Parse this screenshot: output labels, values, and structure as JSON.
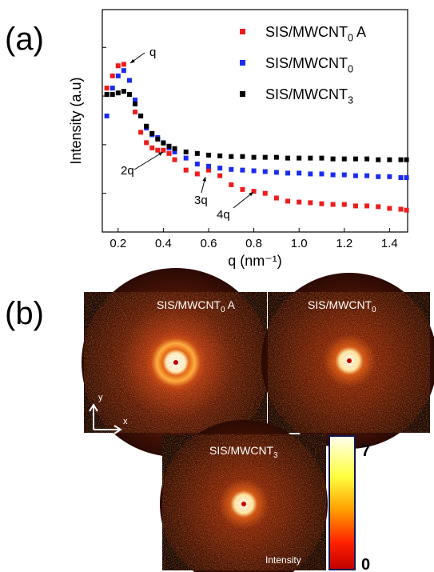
{
  "chart_data": {
    "type": "scatter",
    "panel_label": "(a)",
    "x_label": "q (nm⁻¹)",
    "y_label": "Intensity (a.u)",
    "x": [
      0.15,
      0.175,
      0.2,
      0.225,
      0.25,
      0.275,
      0.3,
      0.325,
      0.35,
      0.375,
      0.4,
      0.425,
      0.45,
      0.5,
      0.55,
      0.6,
      0.65,
      0.7,
      0.75,
      0.8,
      0.85,
      0.9,
      0.95,
      1.0,
      1.05,
      1.1,
      1.15,
      1.2,
      1.25,
      1.3,
      1.35,
      1.4,
      1.45,
      1.475
    ],
    "series": [
      {
        "name": "SIS/MWCNT0 A",
        "color": "#ee1c1c",
        "values": [
          1.46,
          2.6,
          4.2,
          4.5,
          2.1,
          0.47,
          0.18,
          0.11,
          0.086,
          0.077,
          0.077,
          0.066,
          0.049,
          0.03,
          0.025,
          0.03,
          0.023,
          0.015,
          0.012,
          0.011,
          0.01,
          0.008,
          0.0069,
          0.0066,
          0.0064,
          0.0061,
          0.0059,
          0.0059,
          0.0055,
          0.0055,
          0.0053,
          0.0049,
          0.0047,
          0.0045
        ]
      },
      {
        "name": "SIS/MWCNT0",
        "color": "#1c2cee",
        "values": [
          0.39,
          1.46,
          2.6,
          3.35,
          2.1,
          0.83,
          0.39,
          0.22,
          0.16,
          0.14,
          0.11,
          0.086,
          0.071,
          0.053,
          0.04,
          0.036,
          0.033,
          0.031,
          0.03,
          0.029,
          0.028,
          0.027,
          0.026,
          0.026,
          0.025,
          0.025,
          0.024,
          0.024,
          0.023,
          0.023,
          0.022,
          0.022,
          0.021,
          0.021
        ]
      },
      {
        "name": "SIS/MWCNT3",
        "color": "#000000",
        "values": [
          1.08,
          1.08,
          1.16,
          1.25,
          1.08,
          0.69,
          0.39,
          0.24,
          0.17,
          0.13,
          0.108,
          0.093,
          0.083,
          0.071,
          0.066,
          0.061,
          0.059,
          0.057,
          0.057,
          0.055,
          0.055,
          0.055,
          0.053,
          0.053,
          0.053,
          0.053,
          0.051,
          0.051,
          0.051,
          0.051,
          0.049,
          0.049,
          0.049,
          0.049
        ]
      }
    ],
    "xlim": [
      0.13,
      1.48
    ],
    "xticks": [
      0.2,
      0.4,
      0.6,
      0.8,
      {
        "value": 1,
        "label": "1.0"
      },
      1.2,
      1.4
    ],
    "ylim": [
      0.0016,
      60
    ],
    "yticks": [
      0.01,
      0.1,
      1,
      10
    ],
    "ytick_labels": false,
    "log_y": true,
    "legend": "top-right",
    "annotations": [
      "q",
      "2q",
      "3q",
      "4q"
    ]
  },
  "images": {
    "panel_label": "(b)",
    "titles": [
      "SIS/MWCNT0 A",
      "SIS/MWCNT0",
      "SIS/MWCNT3"
    ],
    "axes": [
      "y",
      "x"
    ],
    "colorbar": {
      "max": "7",
      "min": "0",
      "label": "Intensity"
    }
  }
}
